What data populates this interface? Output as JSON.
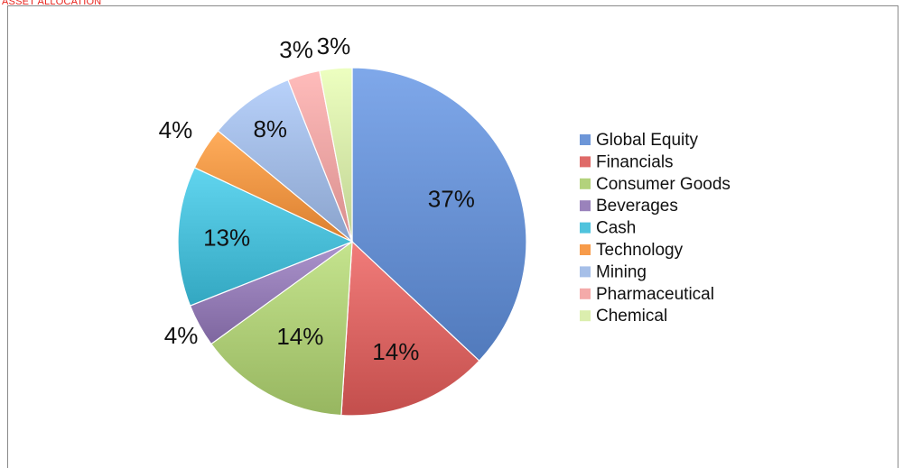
{
  "page": {
    "header_title": "ASSET ALLOCATION"
  },
  "chart_data": {
    "type": "pie",
    "title": "ASSET ALLOCATION",
    "labels": [
      "Global Equity",
      "Financials",
      "Consumer Goods",
      "Beverages",
      "Cash",
      "Technology",
      "Mining",
      "Pharmaceutical",
      "Chemical"
    ],
    "values": [
      37,
      14,
      14,
      4,
      13,
      4,
      8,
      3,
      3
    ],
    "value_labels": [
      "37%",
      "14%",
      "14%",
      "4%",
      "13%",
      "4%",
      "8%",
      "3%",
      "3%"
    ],
    "colors": [
      "#6d96d8",
      "#df6a68",
      "#b3d27c",
      "#9a82bb",
      "#4fc3dd",
      "#f79b4a",
      "#a6bfe8",
      "#f4aaa9",
      "#dbeeae"
    ],
    "start_angle_deg": -90,
    "direction": "clockwise",
    "legend_position": "right",
    "grid": false
  }
}
